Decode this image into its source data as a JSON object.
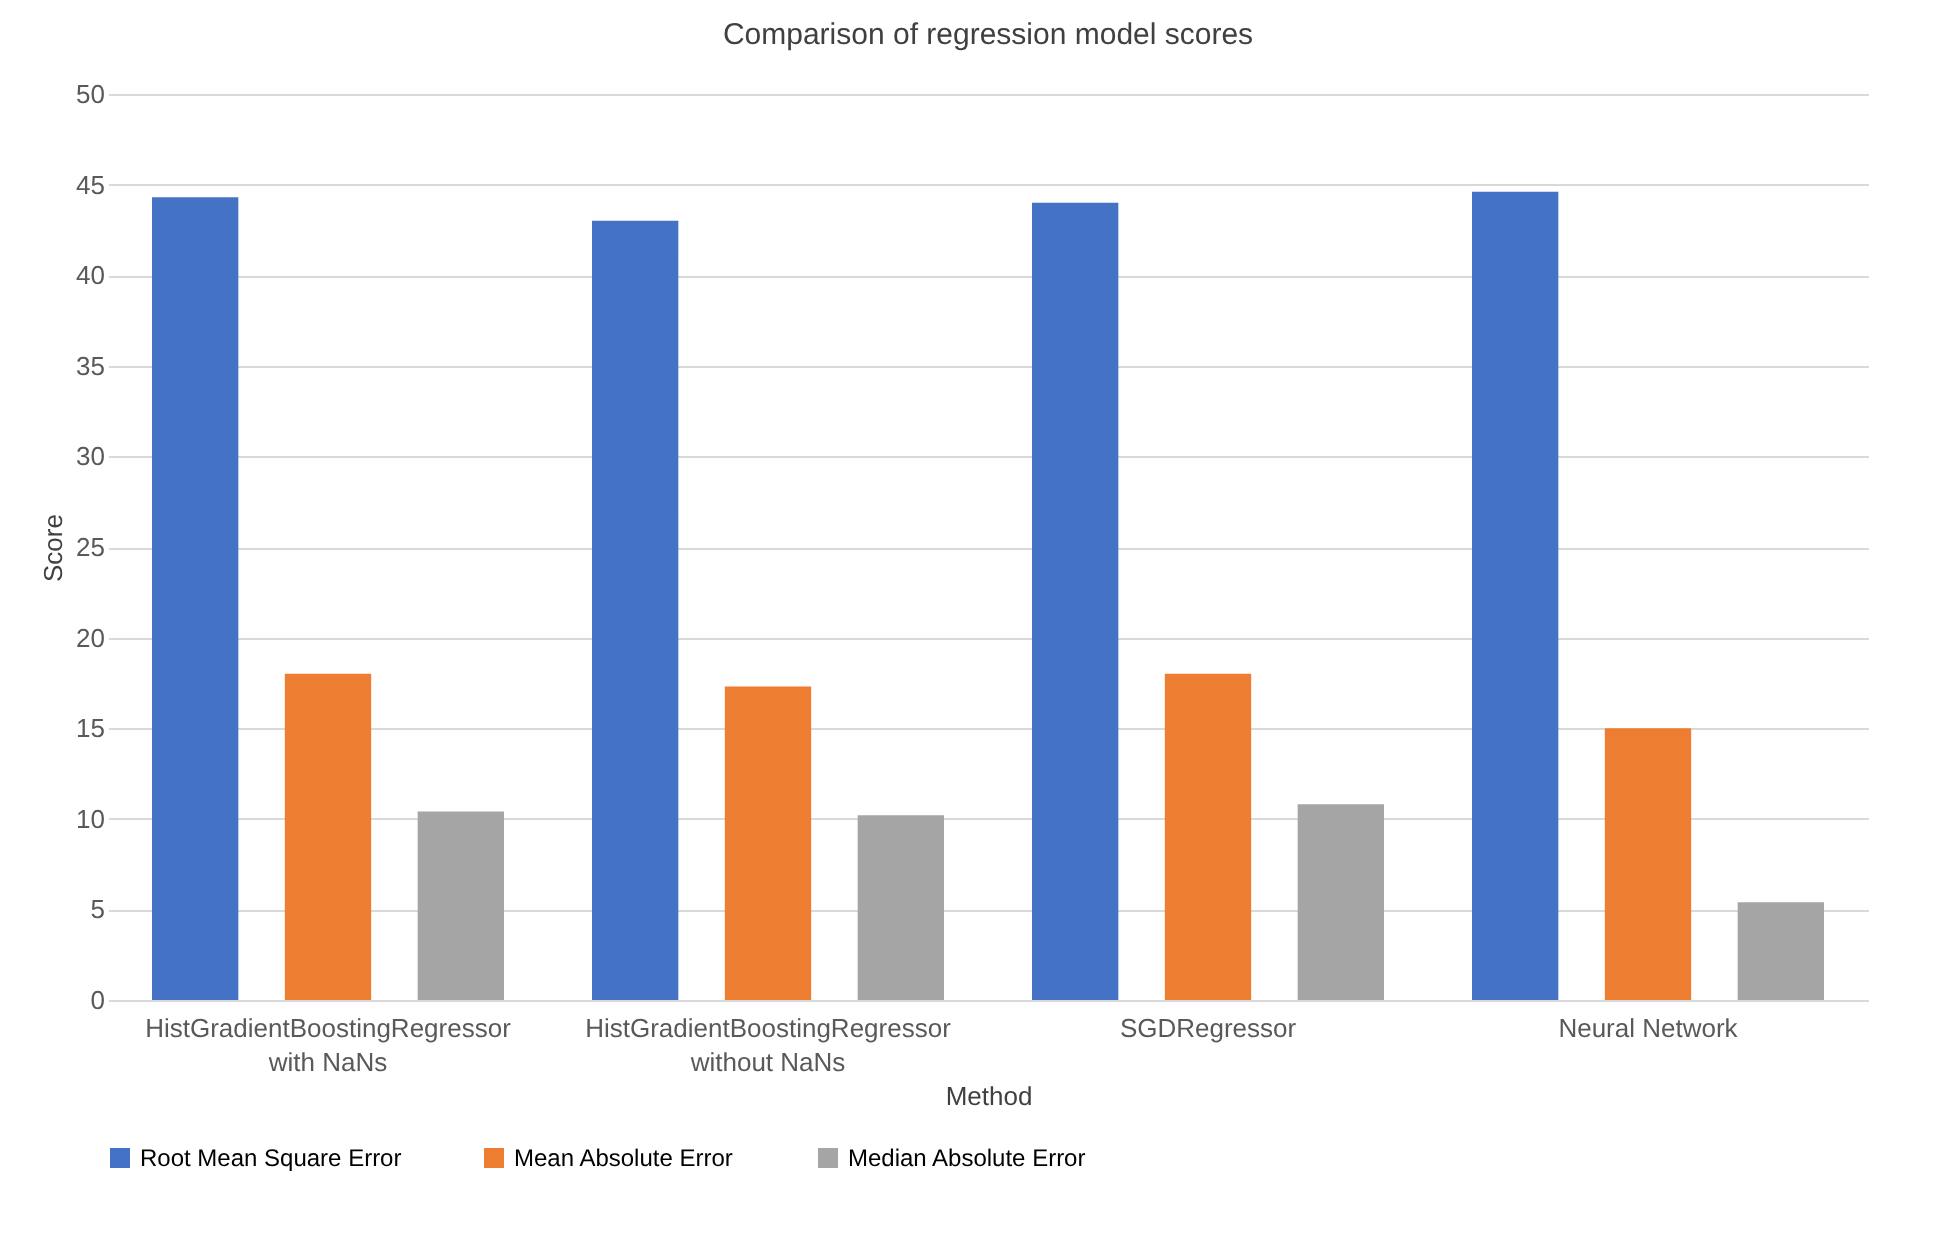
{
  "chart_data": {
    "type": "bar",
    "title": "Comparison of regression model scores",
    "xlabel": "Method",
    "ylabel": "Score",
    "categories": [
      "HistGradientBoostingRegressor\nwith NaNs",
      "HistGradientBoostingRegressor\nwithout NaNs",
      "SGDRegressor",
      "Neural Network"
    ],
    "series": [
      {
        "name": "Root Mean Square Error",
        "color": "#4472c4",
        "values": [
          44.3,
          43.0,
          44.0,
          44.6
        ]
      },
      {
        "name": "Mean Absolute Error",
        "color": "#ed7d31",
        "values": [
          18.0,
          17.3,
          18.0,
          15.0
        ]
      },
      {
        "name": "Median Absolute Error",
        "color": "#a5a5a5",
        "values": [
          10.4,
          10.2,
          10.8,
          5.4
        ]
      }
    ],
    "ylim": [
      0,
      50
    ],
    "yticks": [
      0,
      5,
      10,
      15,
      20,
      25,
      30,
      35,
      40,
      45,
      50
    ],
    "grid": "y",
    "legend": "bottom"
  }
}
